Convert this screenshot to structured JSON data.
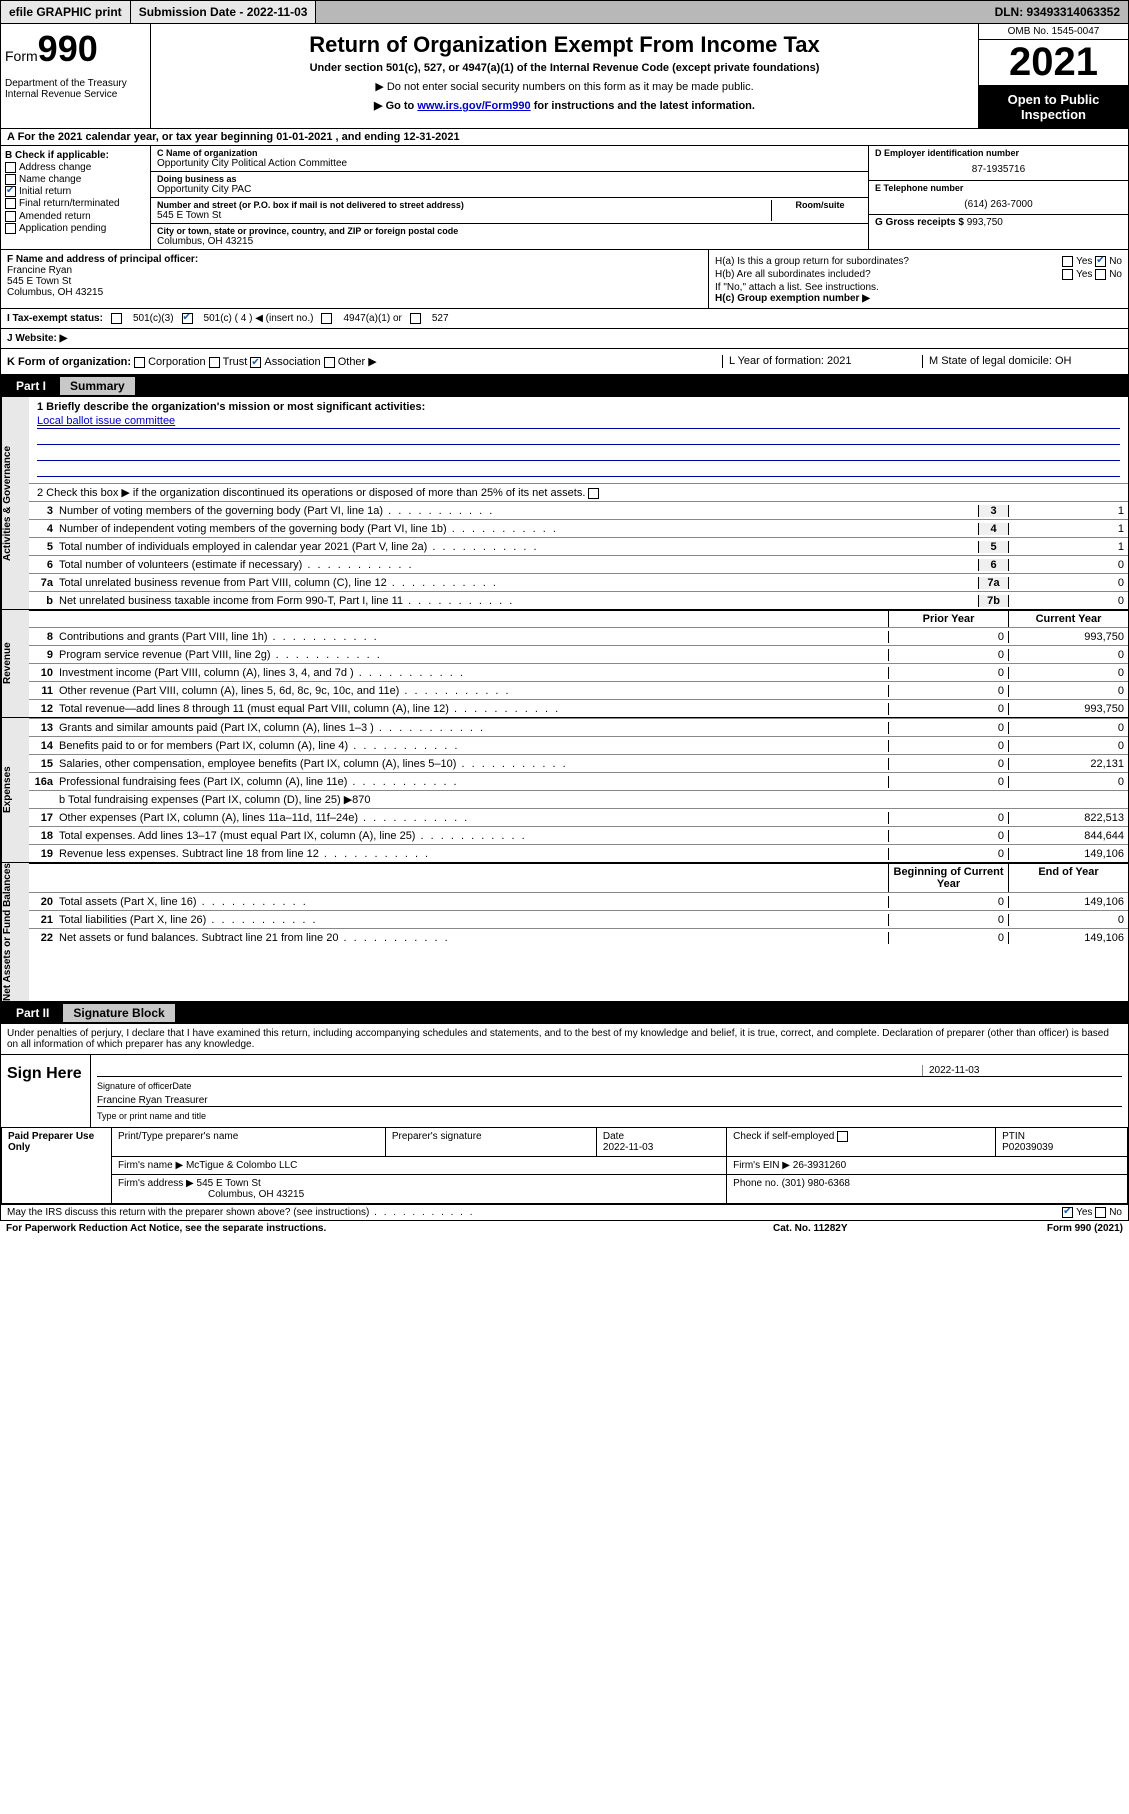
{
  "topbar": {
    "efile": "efile GRAPHIC print",
    "submission": "Submission Date - 2022-11-03",
    "dln": "DLN: 93493314063352"
  },
  "header": {
    "form_label": "Form",
    "form_num": "990",
    "dept": "Department of the Treasury Internal Revenue Service",
    "title": "Return of Organization Exempt From Income Tax",
    "sub": "Under section 501(c), 527, or 4947(a)(1) of the Internal Revenue Code (except private foundations)",
    "note1": "▶ Do not enter social security numbers on this form as it may be made public.",
    "note2_a": "▶ Go to ",
    "note2_link": "www.irs.gov/Form990",
    "note2_b": " for instructions and the latest information.",
    "omb": "OMB No. 1545-0047",
    "year": "2021",
    "open": "Open to Public Inspection"
  },
  "row_a": "A For the 2021 calendar year, or tax year beginning 01-01-2021    , and ending 12-31-2021",
  "col_b": {
    "hdr": "B Check if applicable:",
    "items": [
      {
        "label": "Address change",
        "checked": false
      },
      {
        "label": "Name change",
        "checked": false
      },
      {
        "label": "Initial return",
        "checked": true
      },
      {
        "label": "Final return/terminated",
        "checked": false
      },
      {
        "label": "Amended return",
        "checked": false
      },
      {
        "label": "Application pending",
        "checked": false
      }
    ]
  },
  "col_c": {
    "name_lbl": "C Name of organization",
    "name": "Opportunity City Political Action Committee",
    "dba_lbl": "Doing business as",
    "dba": "Opportunity City PAC",
    "addr_lbl": "Number and street (or P.O. box if mail is not delivered to street address)",
    "room_lbl": "Room/suite",
    "addr": "545 E Town St",
    "city_lbl": "City or town, state or province, country, and ZIP or foreign postal code",
    "city": "Columbus, OH  43215"
  },
  "col_d": {
    "ein_lbl": "D Employer identification number",
    "ein": "87-1935716",
    "tel_lbl": "E Telephone number",
    "tel": "(614) 263-7000",
    "gross_lbl": "G Gross receipts $",
    "gross": "993,750"
  },
  "row_f": {
    "f_lbl": "F Name and address of principal officer:",
    "f_name": "Francine Ryan",
    "f_addr1": "545 E Town St",
    "f_addr2": "Columbus, OH  43215",
    "ha": "H(a)  Is this a group return for subordinates?",
    "ha_yes": "Yes",
    "ha_no": "No",
    "hb": "H(b)  Are all subordinates included?",
    "hb_yes": "Yes",
    "hb_no": "No",
    "hb_note": "If \"No,\" attach a list. See instructions.",
    "hc": "H(c)  Group exemption number ▶"
  },
  "row_i": {
    "i_lbl": "I   Tax-exempt status:",
    "i_501c3": "501(c)(3)",
    "i_501c": "501(c) ( 4 ) ◀ (insert no.)",
    "i_4947": "4947(a)(1) or",
    "i_527": "527",
    "j_lbl": "J   Website: ▶"
  },
  "row_k": {
    "k_lbl": "K Form of organization:",
    "k_corp": "Corporation",
    "k_trust": "Trust",
    "k_assoc": "Association",
    "k_other": "Other ▶",
    "l": "L Year of formation: 2021",
    "m": "M State of legal domicile: OH"
  },
  "part1": {
    "num": "Part I",
    "title": "Summary"
  },
  "summary": {
    "sec1_label": "Activities & Governance",
    "line1_lbl": "1   Briefly describe the organization's mission or most significant activities:",
    "line1_val": "Local ballot issue committee",
    "line2": "2    Check this box ▶       if the organization discontinued its operations or disposed of more than 25% of its net assets.",
    "rows_top": [
      {
        "n": "3",
        "txt": "Number of voting members of the governing body (Part VI, line 1a)",
        "box": "3",
        "val": "1"
      },
      {
        "n": "4",
        "txt": "Number of independent voting members of the governing body (Part VI, line 1b)",
        "box": "4",
        "val": "1"
      },
      {
        "n": "5",
        "txt": "Total number of individuals employed in calendar year 2021 (Part V, line 2a)",
        "box": "5",
        "val": "1"
      },
      {
        "n": "6",
        "txt": "Total number of volunteers (estimate if necessary)",
        "box": "6",
        "val": "0"
      },
      {
        "n": "7a",
        "txt": "Total unrelated business revenue from Part VIII, column (C), line 12",
        "box": "7a",
        "val": "0"
      },
      {
        "n": "b",
        "txt": "Net unrelated business taxable income from Form 990-T, Part I, line 11",
        "box": "7b",
        "val": "0"
      }
    ],
    "col_prior": "Prior Year",
    "col_curr": "Current Year",
    "sec2_label": "Revenue",
    "rows_rev": [
      {
        "n": "8",
        "txt": "Contributions and grants (Part VIII, line 1h)",
        "p": "0",
        "c": "993,750"
      },
      {
        "n": "9",
        "txt": "Program service revenue (Part VIII, line 2g)",
        "p": "0",
        "c": "0"
      },
      {
        "n": "10",
        "txt": "Investment income (Part VIII, column (A), lines 3, 4, and 7d )",
        "p": "0",
        "c": "0"
      },
      {
        "n": "11",
        "txt": "Other revenue (Part VIII, column (A), lines 5, 6d, 8c, 9c, 10c, and 11e)",
        "p": "0",
        "c": "0"
      },
      {
        "n": "12",
        "txt": "Total revenue—add lines 8 through 11 (must equal Part VIII, column (A), line 12)",
        "p": "0",
        "c": "993,750"
      }
    ],
    "sec3_label": "Expenses",
    "rows_exp": [
      {
        "n": "13",
        "txt": "Grants and similar amounts paid (Part IX, column (A), lines 1–3 )",
        "p": "0",
        "c": "0"
      },
      {
        "n": "14",
        "txt": "Benefits paid to or for members (Part IX, column (A), line 4)",
        "p": "0",
        "c": "0"
      },
      {
        "n": "15",
        "txt": "Salaries, other compensation, employee benefits (Part IX, column (A), lines 5–10)",
        "p": "0",
        "c": "22,131"
      },
      {
        "n": "16a",
        "txt": "Professional fundraising fees (Part IX, column (A), line 11e)",
        "p": "0",
        "c": "0"
      }
    ],
    "line16b": "b   Total fundraising expenses (Part IX, column (D), line 25) ▶870",
    "rows_exp2": [
      {
        "n": "17",
        "txt": "Other expenses (Part IX, column (A), lines 11a–11d, 11f–24e)",
        "p": "0",
        "c": "822,513"
      },
      {
        "n": "18",
        "txt": "Total expenses. Add lines 13–17 (must equal Part IX, column (A), line 25)",
        "p": "0",
        "c": "844,644"
      },
      {
        "n": "19",
        "txt": "Revenue less expenses. Subtract line 18 from line 12",
        "p": "0",
        "c": "149,106"
      }
    ],
    "col_beg": "Beginning of Current Year",
    "col_end": "End of Year",
    "sec4_label": "Net Assets or Fund Balances",
    "rows_na": [
      {
        "n": "20",
        "txt": "Total assets (Part X, line 16)",
        "p": "0",
        "c": "149,106"
      },
      {
        "n": "21",
        "txt": "Total liabilities (Part X, line 26)",
        "p": "0",
        "c": "0"
      },
      {
        "n": "22",
        "txt": "Net assets or fund balances. Subtract line 21 from line 20",
        "p": "0",
        "c": "149,106"
      }
    ]
  },
  "part2": {
    "num": "Part II",
    "title": "Signature Block"
  },
  "sig": {
    "intro": "Under penalties of perjury, I declare that I have examined this return, including accompanying schedules and statements, and to the best of my knowledge and belief, it is true, correct, and complete. Declaration of preparer (other than officer) is based on all information of which preparer has any knowledge.",
    "sign_here": "Sign Here",
    "sig_of_officer": "Signature of officer",
    "date_lbl": "Date",
    "date": "2022-11-03",
    "name_title": "Francine Ryan  Treasurer",
    "name_title_lbl": "Type or print name and title",
    "paid": "Paid Preparer Use Only",
    "prep_name_lbl": "Print/Type preparer's name",
    "prep_sig_lbl": "Preparer's signature",
    "prep_date_lbl": "Date",
    "prep_date": "2022-11-03",
    "prep_check": "Check        if self-employed",
    "ptin_lbl": "PTIN",
    "ptin": "P02039039",
    "firm_name_lbl": "Firm's name    ▶",
    "firm_name": "McTigue & Colombo LLC",
    "firm_ein_lbl": "Firm's EIN ▶",
    "firm_ein": "26-3931260",
    "firm_addr_lbl": "Firm's address ▶",
    "firm_addr1": "545 E Town St",
    "firm_addr2": "Columbus, OH  43215",
    "phone_lbl": "Phone no.",
    "phone": "(301) 980-6368"
  },
  "footer": {
    "discuss": "May the IRS discuss this return with the preparer shown above? (see instructions)",
    "yes": "Yes",
    "no": "No",
    "pra": "For Paperwork Reduction Act Notice, see the separate instructions.",
    "cat": "Cat. No. 11282Y",
    "form": "Form 990 (2021)"
  }
}
